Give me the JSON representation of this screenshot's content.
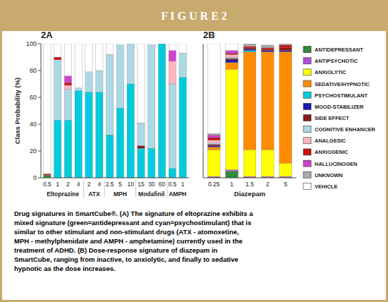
{
  "title": "F I G U R E   2",
  "annotations": [
    "Drug signatures in SmartCube®. (A) The signature of eltoprazine exhibits a\nmixed signature (green=antidepressant and cyan=psychostimulant) that is\nsimilar to other stimulant and non-stimulant drugs (ATX - atomoxetine,\nMPH - methylphenidate and AMPH - amphetamine) currently used in the\ntreatment of ADHD. (B) Dose-response signature of diazepam in\nSmartCube, ranging from inactive, to anxiolytic, and finally to sedative\nhypnotic as the dose increases."
  ],
  "chart_data": [
    {
      "type": "bar",
      "title": "2A",
      "stacked": true,
      "legend": "right",
      "y_label": "Class Probability (%)",
      "categories": [
        "0.5",
        "1",
        "2",
        "4",
        "2",
        "4",
        "2.5",
        "5",
        "10",
        "15",
        "30",
        "60",
        "0.5",
        "1"
      ],
      "groups": [
        "Eltoprazine",
        "ATX",
        "MPH",
        "Modafinil",
        "AMPH"
      ],
      "group_sizes": [
        4,
        2,
        3,
        3,
        2
      ],
      "ylim": [
        0,
        100
      ],
      "yticks": [
        0,
        20,
        40,
        60,
        80,
        100
      ],
      "series": [
        {
          "name": "ANTIDEPRESSANT",
          "color": "#2e8b3a",
          "values": [
            2,
            0,
            0,
            0,
            0,
            0,
            0,
            0,
            0,
            0,
            0,
            0,
            0,
            0
          ]
        },
        {
          "name": "ANTIPSYCHOTIC",
          "color": "#b44fd4",
          "values": [
            0,
            0,
            0,
            0,
            0,
            0,
            0,
            0,
            0,
            0,
            0,
            0,
            0,
            0
          ]
        },
        {
          "name": "ANXIOLYTIC",
          "color": "#ffff00",
          "values": [
            0,
            0,
            0,
            0,
            0,
            0,
            0,
            0,
            0,
            0,
            0,
            0,
            0,
            0
          ]
        },
        {
          "name": "SEDATIVE/HYPNOTIC",
          "color": "#ff8c00",
          "values": [
            0,
            0,
            0,
            0,
            0,
            0,
            0,
            0,
            0,
            0,
            0,
            0,
            0,
            0
          ]
        },
        {
          "name": "PSYCHOSTIMULANT",
          "color": "#00ccdd",
          "values": [
            0,
            43,
            43,
            65,
            64,
            64,
            32,
            52,
            70,
            22,
            22,
            100,
            7,
            75
          ]
        },
        {
          "name": "MOOD-STABILIZER",
          "color": "#1a1aaa",
          "values": [
            0,
            0,
            0,
            0,
            0,
            0,
            0,
            0,
            0,
            0,
            0,
            0,
            0,
            0
          ]
        },
        {
          "name": "SIDE EFFECT",
          "color": "#8b1a1a",
          "values": [
            0,
            0,
            0,
            0,
            0,
            0,
            0,
            0,
            0,
            2,
            0,
            0,
            0,
            0
          ]
        },
        {
          "name": "COGNITIVE ENHANCER",
          "color": "#add8e6",
          "values": [
            0,
            45,
            23,
            2,
            15,
            16,
            60,
            47,
            30,
            17,
            77,
            0,
            63,
            18
          ]
        },
        {
          "name": "ANALGESIC",
          "color": "#ffb6c1",
          "values": [
            0,
            0,
            3,
            0,
            0,
            0,
            0,
            0,
            0,
            0,
            0,
            0,
            17,
            0
          ]
        },
        {
          "name": "ANXIOGENIC",
          "color": "#cc1111",
          "values": [
            1,
            2,
            2,
            0,
            0,
            0,
            0,
            0,
            0,
            0,
            0,
            0,
            0,
            0
          ]
        },
        {
          "name": "HALLUCINOGEN",
          "color": "#cc44cc",
          "values": [
            0,
            0,
            5,
            0,
            0,
            0,
            0,
            0,
            0,
            0,
            0,
            0,
            8,
            0
          ]
        },
        {
          "name": "UNKNOWN",
          "color": "#aaaaaa",
          "values": [
            0,
            0,
            0,
            0,
            0,
            0,
            0,
            0,
            0,
            0,
            0,
            0,
            0,
            0
          ]
        },
        {
          "name": "VEHICLE",
          "color": "#ffffff",
          "values": [
            97,
            10,
            24,
            33,
            21,
            20,
            8,
            1,
            0,
            59,
            1,
            0,
            5,
            7
          ]
        }
      ]
    },
    {
      "type": "bar",
      "title": "2B",
      "stacked": true,
      "tick_labels": "x",
      "x_label": "Diazepam",
      "categories": [
        "0.25",
        "1",
        "1.5",
        "2",
        "5"
      ],
      "ylim": [
        0,
        100
      ],
      "series": [
        {
          "color": "#2e8b3a",
          "values": [
            0,
            5,
            0,
            0,
            0
          ]
        },
        {
          "color": "#b44fd4",
          "values": [
            1,
            1,
            1,
            1,
            1
          ]
        },
        {
          "color": "#ffff00",
          "values": [
            20,
            75,
            20,
            20,
            10
          ]
        },
        {
          "color": "#ff8c00",
          "values": [
            2,
            5,
            73,
            73,
            83
          ]
        },
        {
          "color": "#00ccdd",
          "values": [
            0,
            0,
            1,
            0,
            0
          ]
        },
        {
          "color": "#1a1aaa",
          "values": [
            1,
            2,
            1,
            1,
            1
          ]
        },
        {
          "color": "#8b1a1a",
          "values": [
            1,
            1,
            1,
            1,
            2
          ]
        },
        {
          "color": "#add8e6",
          "values": [
            1,
            1,
            0,
            0,
            0
          ]
        },
        {
          "color": "#ffb6c1",
          "values": [
            2,
            2,
            0,
            0,
            0
          ]
        },
        {
          "color": "#cc1111",
          "values": [
            2,
            1,
            1,
            1,
            2
          ]
        },
        {
          "color": "#cc44cc",
          "values": [
            2,
            2,
            0,
            0,
            0
          ]
        },
        {
          "color": "#aaaaaa",
          "values": [
            1,
            0,
            2,
            2,
            1
          ]
        },
        {
          "color": "#ffffff",
          "values": [
            67,
            5,
            0,
            0,
            0
          ]
        }
      ]
    }
  ]
}
